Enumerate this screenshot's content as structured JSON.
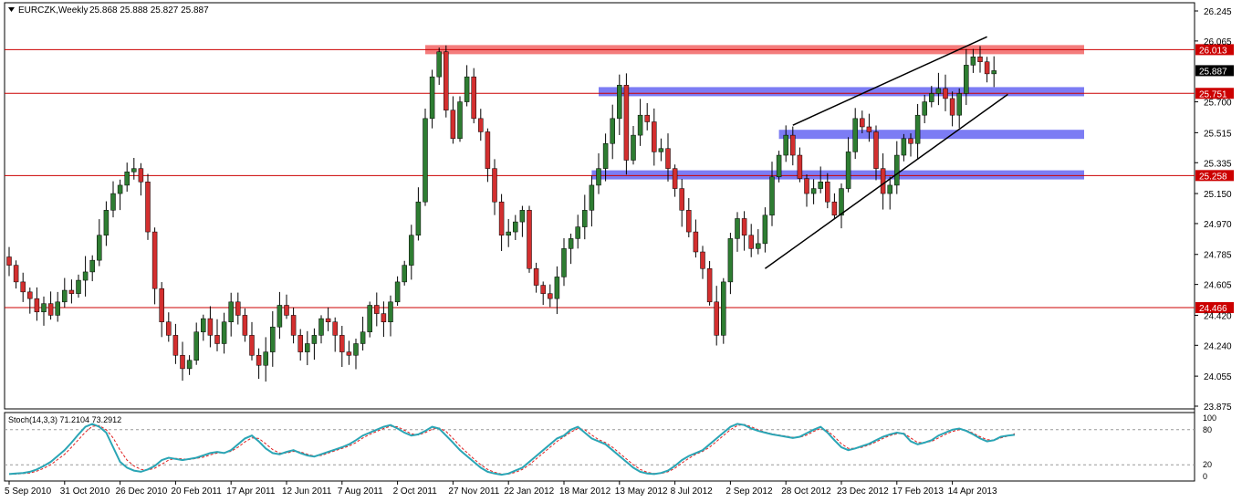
{
  "header": {
    "symbol": "EURCZK,Weekly",
    "ohlc": "25.868 25.888 25.827 25.887"
  },
  "stoch": {
    "label": "Stoch(14,3,3) 71.2104 73.2912",
    "levels": [
      "100",
      "80",
      "20",
      "0"
    ]
  },
  "colors": {
    "bull": "#2e7d32",
    "bear": "#d32f2f",
    "wick": "#000000",
    "red_line": "#cc0000",
    "blue_zone": "#5050f0",
    "red_zone": "#f05050",
    "stoch_main": "#2aa5b5",
    "stoch_signal": "#e02020"
  },
  "chart_data": {
    "type": "candlestick",
    "yaxis": {
      "ylim": [
        23.875,
        26.245
      ],
      "ticks": [
        "26.245",
        "26.065",
        "25.700",
        "25.515",
        "25.335",
        "25.150",
        "24.970",
        "24.785",
        "24.605",
        "24.420",
        "24.240",
        "24.055",
        "23.875"
      ],
      "tick_values": [
        26.245,
        26.065,
        25.7,
        25.515,
        25.335,
        25.15,
        24.97,
        24.785,
        24.605,
        24.42,
        24.24,
        24.055,
        23.875
      ]
    },
    "xaxis": {
      "labels": [
        "5 Sep 2010",
        "31 Oct 2010",
        "26 Dec 2010",
        "20 Feb 2011",
        "17 Apr 2011",
        "12 Jun 2011",
        "7 Aug 2011",
        "2 Oct 2011",
        "27 Nov 2011",
        "22 Jan 2012",
        "18 Mar 2012",
        "13 May 2012",
        "8 Jul 2012",
        "2 Sep 2012",
        "28 Oct 2012",
        "23 Dec 2012",
        "17 Feb 2013",
        "14 Apr 2013"
      ],
      "label_bar_index": [
        0,
        8,
        16,
        24,
        32,
        40,
        48,
        56,
        64,
        72,
        80,
        88,
        96,
        104,
        112,
        120,
        128,
        136
      ]
    },
    "horizontal_lines": [
      {
        "value": 26.013,
        "label": "26.013",
        "zone": "red"
      },
      {
        "value": 25.751,
        "label": "25.751",
        "zone": "none"
      },
      {
        "value": 25.258,
        "label": "25.258",
        "zone": "none"
      },
      {
        "value": 24.466,
        "label": "24.466",
        "zone": "none"
      }
    ],
    "current_price": "25.887",
    "zones": [
      {
        "color": "red",
        "value": 26.013,
        "from_bar": 60,
        "to_bar": 155
      },
      {
        "color": "blue",
        "value": 25.761,
        "from_bar": 85,
        "to_bar": 155
      },
      {
        "color": "blue",
        "value": 25.505,
        "from_bar": 111,
        "to_bar": 155
      },
      {
        "color": "blue",
        "value": 25.262,
        "from_bar": 84,
        "to_bar": 155
      }
    ],
    "trendlines": [
      {
        "from": [
          109,
          24.7
        ],
        "to": [
          144,
          25.745
        ]
      },
      {
        "from": [
          113,
          25.56
        ],
        "to": [
          141,
          26.09
        ]
      }
    ],
    "closes": [
      24.72,
      24.62,
      24.56,
      24.52,
      24.44,
      24.49,
      24.42,
      24.5,
      24.57,
      24.55,
      24.63,
      24.68,
      24.75,
      24.9,
      25.05,
      25.15,
      25.2,
      25.28,
      25.3,
      25.22,
      24.92,
      24.58,
      24.38,
      24.3,
      24.18,
      24.1,
      24.15,
      24.32,
      24.4,
      24.3,
      24.25,
      24.38,
      24.5,
      24.42,
      24.3,
      24.18,
      24.12,
      24.2,
      24.35,
      24.48,
      24.42,
      24.3,
      24.2,
      24.25,
      24.3,
      24.4,
      24.38,
      24.3,
      24.2,
      24.18,
      24.25,
      24.32,
      24.48,
      24.43,
      24.38,
      24.5,
      24.62,
      24.72,
      24.9,
      25.1,
      25.6,
      25.85,
      26.0,
      25.65,
      25.48,
      25.7,
      25.85,
      25.6,
      25.52,
      25.3,
      25.1,
      24.9,
      24.92,
      24.98,
      25.05,
      24.7,
      24.6,
      24.55,
      24.52,
      24.65,
      24.82,
      24.88,
      24.95,
      25.05,
      25.2,
      25.3,
      25.45,
      25.6,
      25.8,
      25.35,
      25.5,
      25.62,
      25.58,
      25.4,
      25.42,
      25.3,
      25.18,
      25.05,
      24.92,
      24.8,
      24.7,
      24.5,
      24.3,
      24.62,
      24.88,
      25.0,
      24.9,
      24.82,
      24.85,
      25.02,
      25.25,
      25.38,
      25.5,
      25.38,
      25.24,
      25.15,
      25.18,
      25.22,
      25.1,
      25.02,
      25.18,
      25.4,
      25.6,
      25.55,
      25.52,
      25.3,
      25.15,
      25.2,
      25.38,
      25.48,
      25.45,
      25.62,
      25.7,
      25.75,
      25.78,
      25.72,
      25.62,
      25.75,
      25.92,
      25.97,
      25.94,
      25.868,
      25.887
    ],
    "stoch_main": [
      4,
      5,
      6,
      8,
      12,
      18,
      25,
      35,
      45,
      58,
      72,
      85,
      90,
      85,
      75,
      50,
      25,
      15,
      10,
      8,
      12,
      18,
      28,
      32,
      30,
      28,
      30,
      32,
      36,
      40,
      42,
      40,
      45,
      55,
      65,
      70,
      60,
      48,
      40,
      38,
      42,
      45,
      40,
      36,
      34,
      38,
      42,
      46,
      50,
      55,
      62,
      70,
      75,
      80,
      85,
      88,
      82,
      75,
      70,
      72,
      78,
      85,
      82,
      70,
      58,
      45,
      35,
      25,
      15,
      8,
      5,
      3,
      5,
      10,
      15,
      25,
      35,
      45,
      55,
      65,
      70,
      80,
      85,
      75,
      65,
      60,
      55,
      45,
      35,
      25,
      15,
      8,
      5,
      4,
      6,
      10,
      18,
      28,
      35,
      40,
      45,
      55,
      65,
      75,
      85,
      90,
      88,
      82,
      78,
      75,
      72,
      70,
      68,
      66,
      68,
      74,
      80,
      85,
      75,
      62,
      50,
      45,
      48,
      52,
      56,
      62,
      68,
      72,
      75,
      73,
      60,
      55,
      58,
      62,
      70,
      75,
      80,
      82,
      78,
      72,
      65,
      60,
      62,
      68,
      70,
      71.21
    ],
    "stoch_signal": [
      4,
      4,
      5,
      6,
      9,
      14,
      20,
      29,
      38,
      50,
      63,
      76,
      86,
      87,
      80,
      66,
      45,
      28,
      18,
      12,
      11,
      14,
      21,
      28,
      31,
      30,
      29,
      31,
      33,
      37,
      40,
      41,
      43,
      50,
      59,
      66,
      65,
      56,
      46,
      40,
      40,
      43,
      42,
      38,
      35,
      36,
      40,
      44,
      48,
      52,
      58,
      66,
      72,
      77,
      82,
      86,
      85,
      79,
      73,
      71,
      75,
      81,
      83,
      77,
      65,
      52,
      41,
      30,
      20,
      12,
      7,
      4,
      4,
      7,
      12,
      20,
      30,
      40,
      50,
      60,
      68,
      76,
      82,
      80,
      71,
      63,
      58,
      50,
      40,
      30,
      20,
      12,
      7,
      5,
      5,
      8,
      14,
      23,
      31,
      38,
      43,
      50,
      60,
      70,
      80,
      87,
      89,
      85,
      80,
      76,
      73,
      71,
      69,
      67,
      67,
      71,
      77,
      82,
      78,
      68,
      56,
      48,
      48,
      50,
      54,
      59,
      65,
      70,
      73,
      74,
      66,
      58,
      58,
      60,
      66,
      72,
      77,
      80,
      79,
      74,
      68,
      63,
      62,
      66,
      69,
      73.29
    ]
  }
}
